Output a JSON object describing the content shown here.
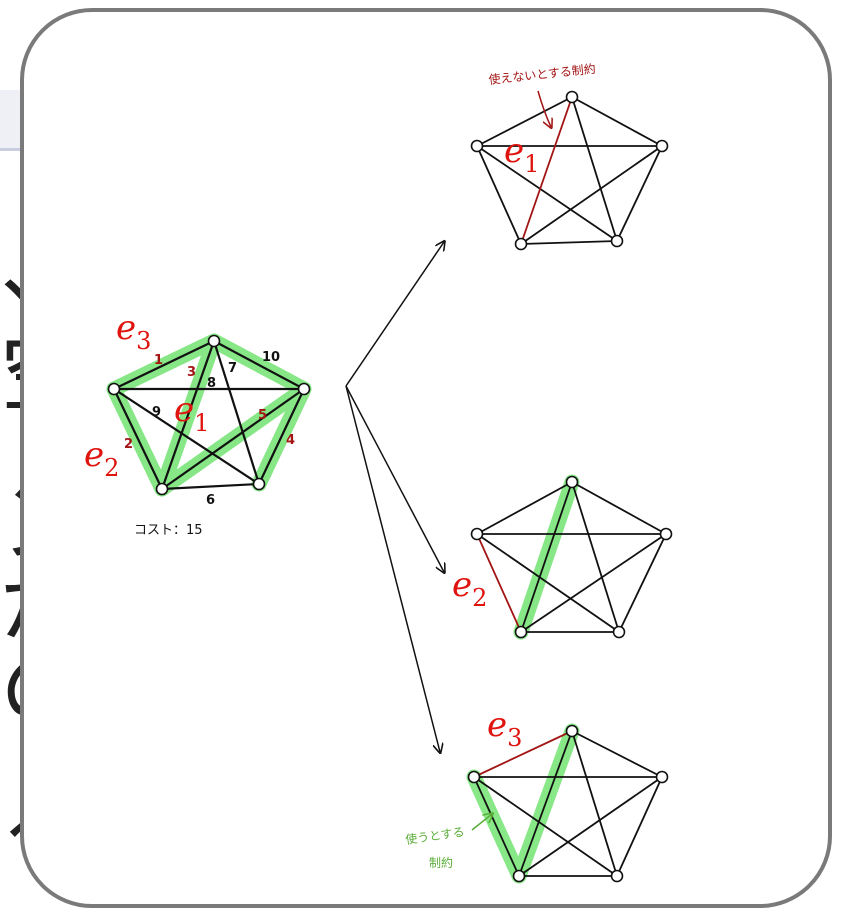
{
  "background": {
    "title_fragment": "グ",
    "chars": [
      "、",
      "空",
      "ン",
      "が",
      "の",
      "る"
    ]
  },
  "left_graph": {
    "edge_weights": [
      "1",
      "2",
      "3",
      "7",
      "8",
      "9",
      "10",
      "5",
      "4",
      "6"
    ],
    "cost_label": "コスト：15",
    "labels": [
      {
        "base": "e",
        "sub": "3"
      },
      {
        "base": "e",
        "sub": "1"
      },
      {
        "base": "e",
        "sub": "2"
      }
    ]
  },
  "top_graph": {
    "annotation": "使えないとする制約",
    "label": {
      "base": "e",
      "sub": "1"
    }
  },
  "middle_graph": {
    "label": {
      "base": "e",
      "sub": "2"
    }
  },
  "bottom_graph": {
    "label": {
      "base": "e",
      "sub": "3"
    },
    "annotation_line1": "使うとする",
    "annotation_line2": "制約"
  },
  "colors": {
    "highlight": "#7be57a",
    "constraint_edge": "#a31515",
    "label_red": "#e0140e",
    "green_note": "#5cae3a",
    "card_border": "#7a7a7a"
  }
}
